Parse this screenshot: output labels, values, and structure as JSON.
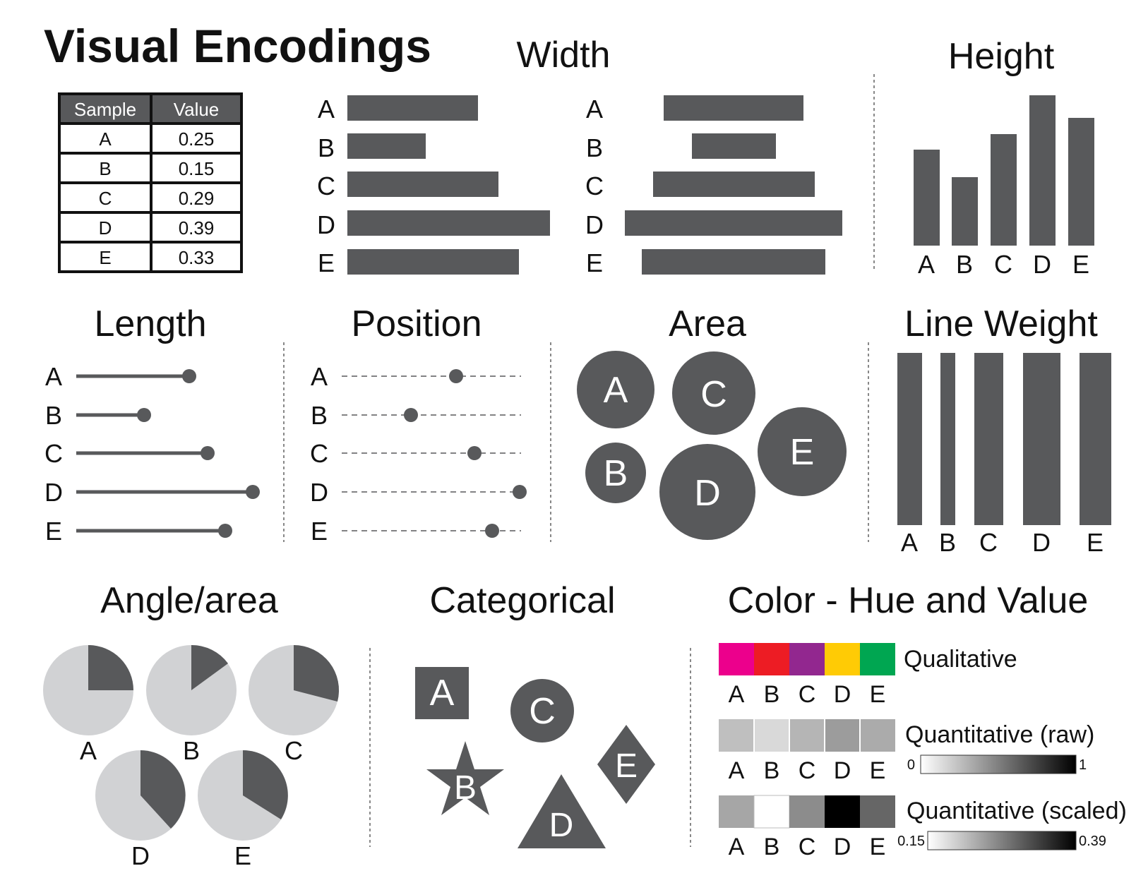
{
  "title": "Visual Encodings",
  "sections": {
    "width": "Width",
    "height": "Height",
    "length": "Length",
    "position": "Position",
    "area": "Area",
    "line_weight": "Line Weight",
    "angle_area": "Angle/area",
    "categorical": "Categorical",
    "color": "Color - Hue and Value"
  },
  "table": {
    "headers": [
      "Sample",
      "Value"
    ],
    "rows": [
      {
        "sample": "A",
        "value": "0.25"
      },
      {
        "sample": "B",
        "value": "0.15"
      },
      {
        "sample": "C",
        "value": "0.29"
      },
      {
        "sample": "D",
        "value": "0.39"
      },
      {
        "sample": "E",
        "value": "0.33"
      }
    ]
  },
  "samples": [
    "A",
    "B",
    "C",
    "D",
    "E"
  ],
  "values": [
    0.25,
    0.15,
    0.29,
    0.39,
    0.33
  ],
  "color_legends": {
    "qualitative": "Qualitative",
    "quantitative_raw": "Quantitative (raw)",
    "quantitative_scaled": "Quantitative (scaled)",
    "raw_min": "0",
    "raw_max": "1",
    "scaled_min": "0.15",
    "scaled_max": "0.39"
  },
  "colors": {
    "mark": "#58595b",
    "pie_background": "#d1d2d4",
    "qualitative": [
      "#ec008c",
      "#ed1c24",
      "#92278f",
      "#ffcb05",
      "#00a651"
    ]
  },
  "categorical_shapes": [
    "square",
    "star",
    "circle",
    "triangle",
    "diamond"
  ]
}
